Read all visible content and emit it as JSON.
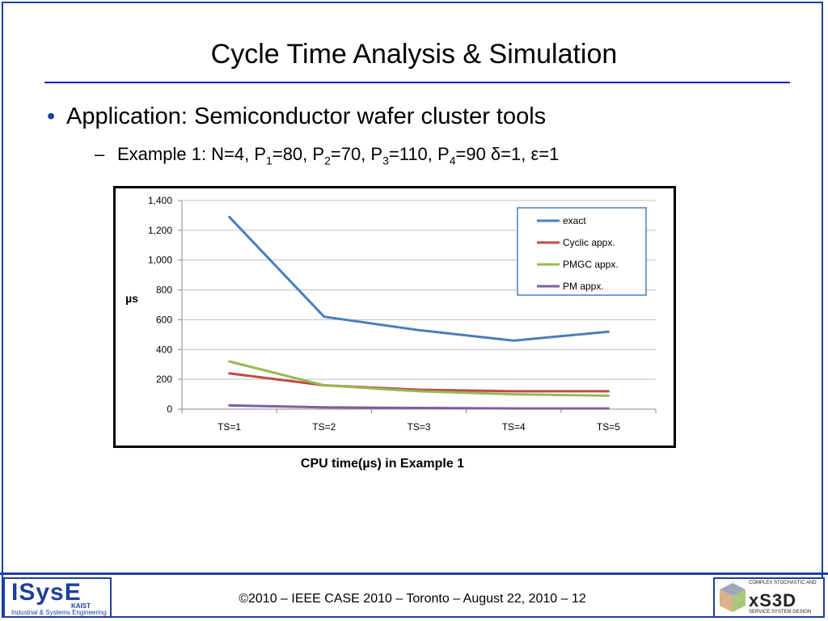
{
  "slide": {
    "title": "Cycle Time Analysis & Simulation",
    "bullet": "Application: Semiconductor wafer cluster tools",
    "sub": {
      "prefix": "Example 1: N=4, P",
      "s1": "1",
      "t1": "=80, P",
      "s2": "2",
      "t2": "=70, P",
      "s3": "3",
      "t3": "=110, P",
      "s4": "4",
      "t4": "=90 δ=1, ε=1"
    },
    "caption": "CPU time(µs) in Example 1",
    "footer": "©2010 – IEEE CASE 2010 – Toronto – August 22, 2010 – 12",
    "logo_left": {
      "main": "ISysE",
      "kaist": "KAIST",
      "sub": "Industrial & Systems Engineering"
    },
    "logo_right": {
      "main": "xS3D",
      "top": "COMPLEX STOCHASTIC AND",
      "bottom": "SERVICE SYSTEM DESIGN"
    }
  },
  "chart_data": {
    "type": "line",
    "categories": [
      "TS=1",
      "TS=2",
      "TS=3",
      "TS=4",
      "TS=5"
    ],
    "series": [
      {
        "name": "exact",
        "color": "#4a7ebb",
        "values": [
          1290,
          620,
          530,
          460,
          520
        ]
      },
      {
        "name": "Cyclic appx.",
        "color": "#be4b48",
        "values": [
          240,
          160,
          130,
          120,
          120
        ]
      },
      {
        "name": "PMGC appx.",
        "color": "#98b954",
        "values": [
          320,
          160,
          120,
          100,
          90
        ]
      },
      {
        "name": "PM appx.",
        "color": "#7d60a0",
        "values": [
          25,
          12,
          8,
          5,
          5
        ]
      }
    ],
    "ylabel": "µs",
    "ylim": [
      0,
      1400
    ],
    "yticks": [
      0,
      200,
      400,
      600,
      800,
      1000,
      1200,
      1400
    ],
    "ytick_labels": [
      "0",
      "200",
      "400",
      "600",
      "800",
      "1,000",
      "1,200",
      "1,400"
    ],
    "grid": true,
    "legend": "top-right"
  }
}
